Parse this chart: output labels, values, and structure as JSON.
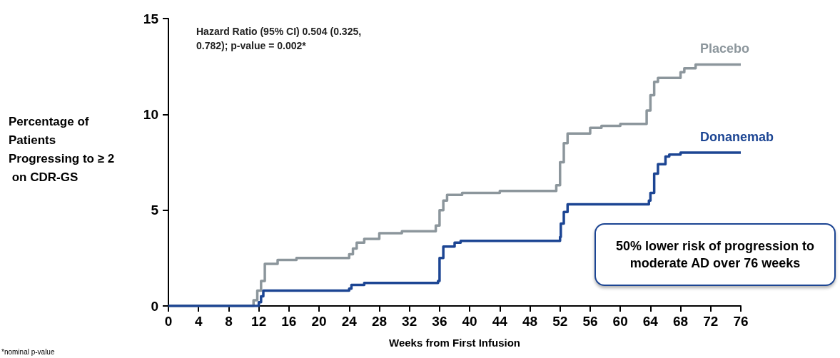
{
  "chart_data": {
    "type": "step",
    "xlabel": "Weeks from First Infusion",
    "ylabel": "Percentage of Patients Progressing to ≥ 2 on CDR-GS",
    "xlim": [
      0,
      76
    ],
    "xticks": [
      0,
      4,
      8,
      12,
      16,
      20,
      24,
      28,
      32,
      36,
      40,
      44,
      48,
      52,
      56,
      60,
      64,
      68,
      72,
      76
    ],
    "ylim": [
      0,
      15
    ],
    "yticks": [
      0,
      5,
      10,
      15
    ],
    "grid": false,
    "legend": false,
    "marker": "none",
    "line_style": "solid",
    "series": [
      {
        "name": "Placebo",
        "color": "#8c969c",
        "x": [
          0,
          11.3,
          11.8,
          12.3,
          12.8,
          14.5,
          17,
          24,
          24.5,
          25,
          26,
          28,
          31,
          35.5,
          36,
          36.5,
          37,
          39,
          44,
          51.5,
          52,
          52.5,
          53,
          56,
          57.5,
          60,
          63.5,
          64,
          64.5,
          65,
          68,
          68.5,
          70,
          76
        ],
        "values": [
          0,
          0.3,
          0.8,
          1.3,
          2.2,
          2.4,
          2.5,
          2.7,
          3.0,
          3.3,
          3.5,
          3.8,
          3.9,
          4.2,
          5.0,
          5.5,
          5.8,
          5.9,
          6.0,
          6.3,
          7.5,
          8.5,
          9.0,
          9.3,
          9.4,
          9.5,
          10.2,
          11.0,
          11.7,
          11.9,
          12.2,
          12.4,
          12.6,
          12.6
        ]
      },
      {
        "name": "Donanemab",
        "color": "#1c4593",
        "x": [
          0,
          12,
          12.3,
          12.6,
          24,
          24.3,
          26,
          35.8,
          36,
          36.5,
          38,
          38.8,
          52,
          52.1,
          52.5,
          53,
          63.8,
          64,
          64.5,
          65,
          66,
          66.5,
          68,
          76
        ],
        "values": [
          0,
          0.2,
          0.5,
          0.8,
          0.9,
          1.1,
          1.2,
          1.3,
          2.5,
          3.1,
          3.3,
          3.4,
          3.6,
          4.3,
          4.9,
          5.3,
          5.5,
          5.9,
          6.9,
          7.4,
          7.8,
          7.9,
          8.0,
          8.0
        ]
      }
    ],
    "annotations": [
      "Hazard Ratio (95% CI) 0.504 (0.325, 0.782); p-value = 0.002*",
      "50% lower risk of progression to moderate AD over 76 weeks",
      "*nominal p-value"
    ]
  }
}
